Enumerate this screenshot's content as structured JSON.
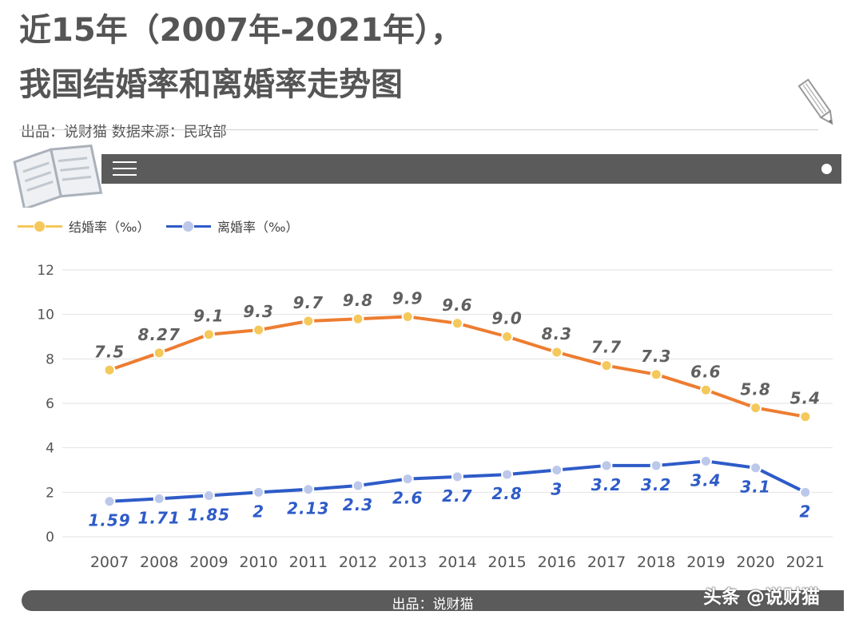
{
  "header": {
    "title_line1": "近15年（2007年-2021年），",
    "title_line2": "我国结婚率和离婚率走势图",
    "subtitle": "出品：说财猫   数据来源：民政部"
  },
  "footer": {
    "text": "出品：说财猫",
    "watermark": "头条 @说财猫"
  },
  "colors": {
    "marriage_line": "#ed7d31",
    "marriage_dot": "#f4c85a",
    "divorce_line": "#2e5bc8",
    "divorce_dot": "#bcc8ea",
    "marriage_label": "#606060",
    "divorce_label": "#2e5bc8"
  },
  "chart_data": {
    "type": "line",
    "categories": [
      "2007",
      "2008",
      "2009",
      "2010",
      "2011",
      "2012",
      "2013",
      "2014",
      "2015",
      "2016",
      "2017",
      "2018",
      "2019",
      "2020",
      "2021"
    ],
    "ylim": [
      0,
      12
    ],
    "yticks": [
      0,
      2,
      4,
      6,
      8,
      10,
      12
    ],
    "grid": true,
    "legend_position": "top-left",
    "series": [
      {
        "name": "结婚率（‰）",
        "values": [
          7.5,
          8.27,
          9.1,
          9.3,
          9.7,
          9.8,
          9.9,
          9.6,
          9.0,
          8.3,
          7.7,
          7.3,
          6.6,
          5.8,
          5.4
        ],
        "labels": [
          "7.5",
          "8.27",
          "9.1",
          "9.3",
          "9.7",
          "9.8",
          "9.9",
          "9.6",
          "9.0",
          "8.3",
          "7.7",
          "7.3",
          "6.6",
          "5.8",
          "5.4"
        ]
      },
      {
        "name": "离婚率（‰）",
        "values": [
          1.59,
          1.71,
          1.85,
          2,
          2.13,
          2.3,
          2.6,
          2.7,
          2.8,
          3,
          3.2,
          3.2,
          3.4,
          3.1,
          2
        ],
        "labels": [
          "1.59",
          "1.71",
          "1.85",
          "2",
          "2.13",
          "2.3",
          "2.6",
          "2.7",
          "2.8",
          "3",
          "3.2",
          "3.2",
          "3.4",
          "3.1",
          "2"
        ]
      }
    ]
  }
}
